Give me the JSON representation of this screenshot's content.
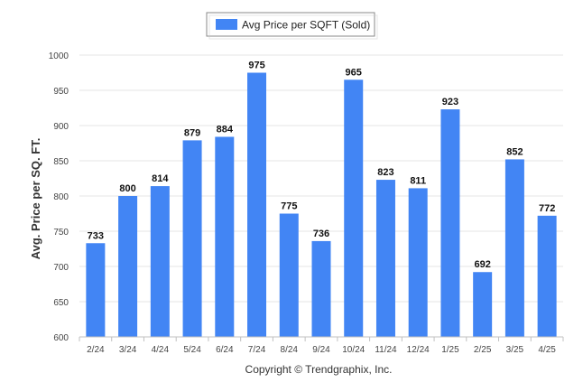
{
  "chart_data": {
    "type": "bar",
    "title": "",
    "xlabel": "",
    "ylabel": "Avg. Price per SQ. FT.",
    "ylim": [
      600,
      1000
    ],
    "yticks": [
      600,
      650,
      700,
      750,
      800,
      850,
      900,
      950,
      1000
    ],
    "grid": true,
    "legend_position": "top-center",
    "categories": [
      "2/24",
      "3/24",
      "4/24",
      "5/24",
      "6/24",
      "7/24",
      "8/24",
      "9/24",
      "10/24",
      "11/24",
      "12/24",
      "1/25",
      "2/25",
      "3/25",
      "4/25"
    ],
    "series": [
      {
        "name": "Avg Price per SQFT (Sold)",
        "values": [
          733,
          800,
          814,
          879,
          884,
          975,
          775,
          736,
          965,
          823,
          811,
          923,
          692,
          852,
          772
        ],
        "color": "#4285f4"
      }
    ],
    "footer": "Copyright © Trendgraphix, Inc."
  }
}
